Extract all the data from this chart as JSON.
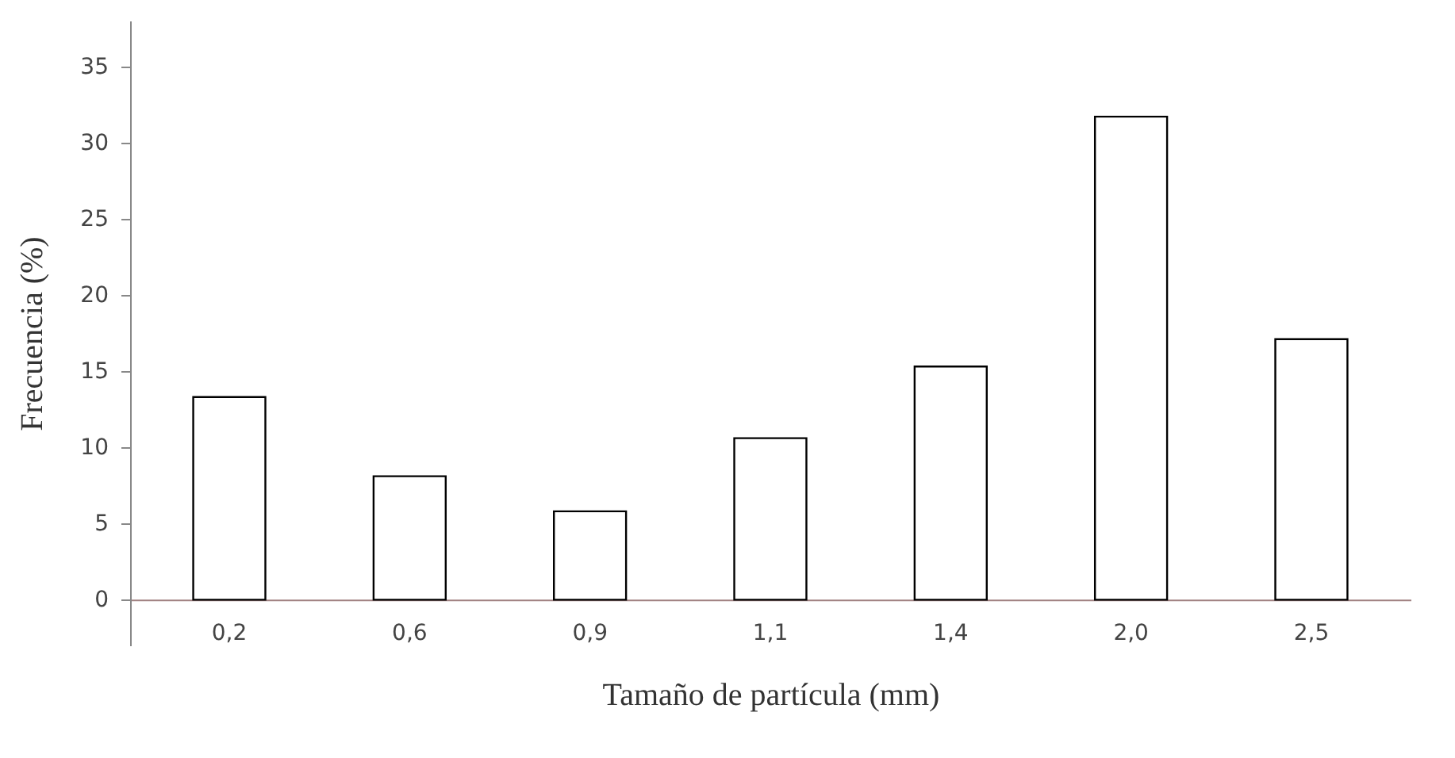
{
  "chart_data": {
    "type": "bar",
    "xlabel": "Tamaño de partícula (mm)",
    "ylabel": "Frecuencia (%)",
    "categories": [
      "0,2",
      "0,6",
      "0,9",
      "1,1",
      "1,4",
      "2,0",
      "2,5"
    ],
    "values": [
      13.3,
      8.1,
      5.8,
      10.6,
      15.3,
      31.7,
      17.1
    ],
    "color": "#ffffff",
    "ylim": [
      -3,
      38
    ],
    "yticks": [
      0,
      5,
      10,
      15,
      20,
      25,
      30,
      35
    ],
    "grid": false
  }
}
